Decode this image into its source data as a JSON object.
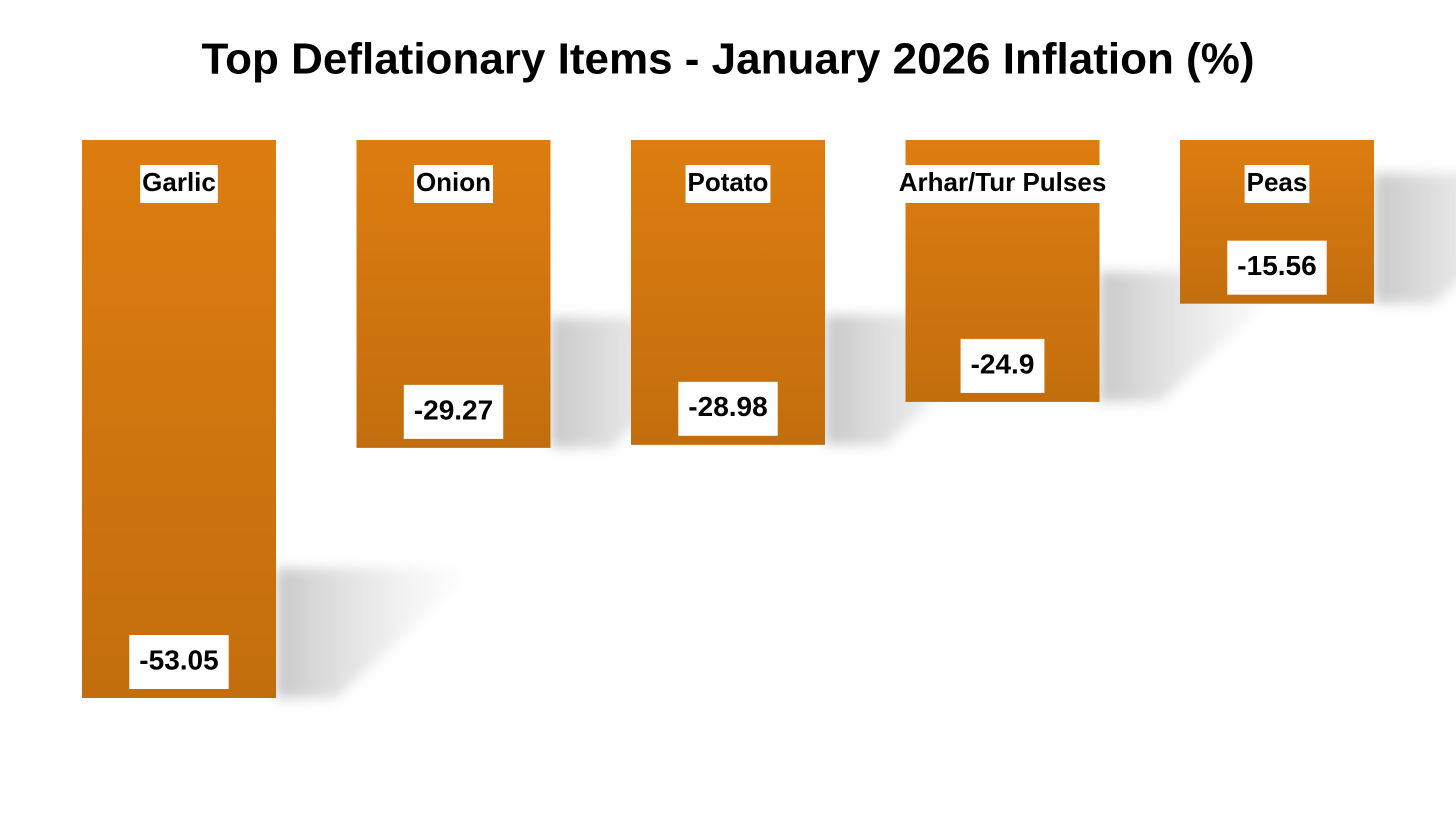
{
  "chart_data": {
    "type": "bar",
    "title": "Top Deflationary Items - January 2026 Inflation (%)",
    "categories": [
      "Garlic",
      "Onion",
      "Potato",
      "Arhar/Tur Pulses",
      "Peas"
    ],
    "values": [
      -53.05,
      -29.27,
      -28.98,
      -24.9,
      -15.56
    ],
    "color": "#dd7d10"
  }
}
